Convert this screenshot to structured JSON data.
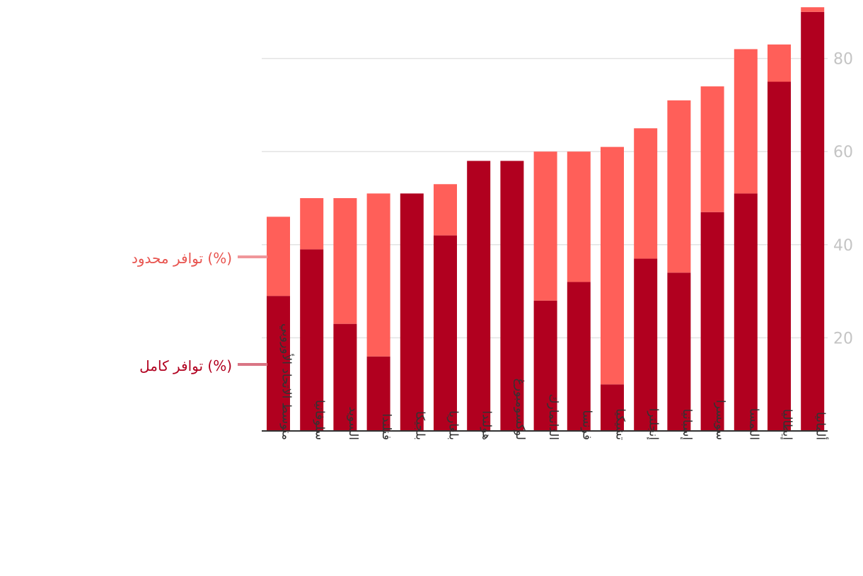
{
  "chart_data": {
    "type": "bar",
    "stacked": true,
    "orientation": "vertical",
    "y_axis_side": "right",
    "ylim": [
      0,
      90
    ],
    "yticks": [
      20,
      40,
      60,
      80
    ],
    "grid": true,
    "legend_placement": "left",
    "categories": [
      "متوسط الاتحاد الأوروبي",
      "سلوفانيا",
      "السويد",
      "فنلندا",
      "بلجيكا",
      "بلغاريا",
      "هولندا",
      "لوكسومبورغ",
      "الدانمارك",
      "فرنسا",
      "تشيكيا",
      "إنجلترا",
      "إسبانيا",
      "سويسرا",
      "النمسا",
      "إيطاليا",
      "ألمانيا"
    ],
    "series": [
      {
        "name": "توافر كامل (%)",
        "color": "#b1001f",
        "values": [
          29,
          39,
          23,
          16,
          51,
          42,
          58,
          58,
          28,
          32,
          10,
          37,
          34,
          47,
          51,
          75,
          90
        ]
      },
      {
        "name": "توافر محدود (%)",
        "color": "#ff5f59",
        "values": [
          17,
          11,
          27,
          35,
          0,
          11,
          0,
          0,
          32,
          28,
          51,
          28,
          37,
          27,
          31,
          8,
          1
        ]
      }
    ]
  }
}
